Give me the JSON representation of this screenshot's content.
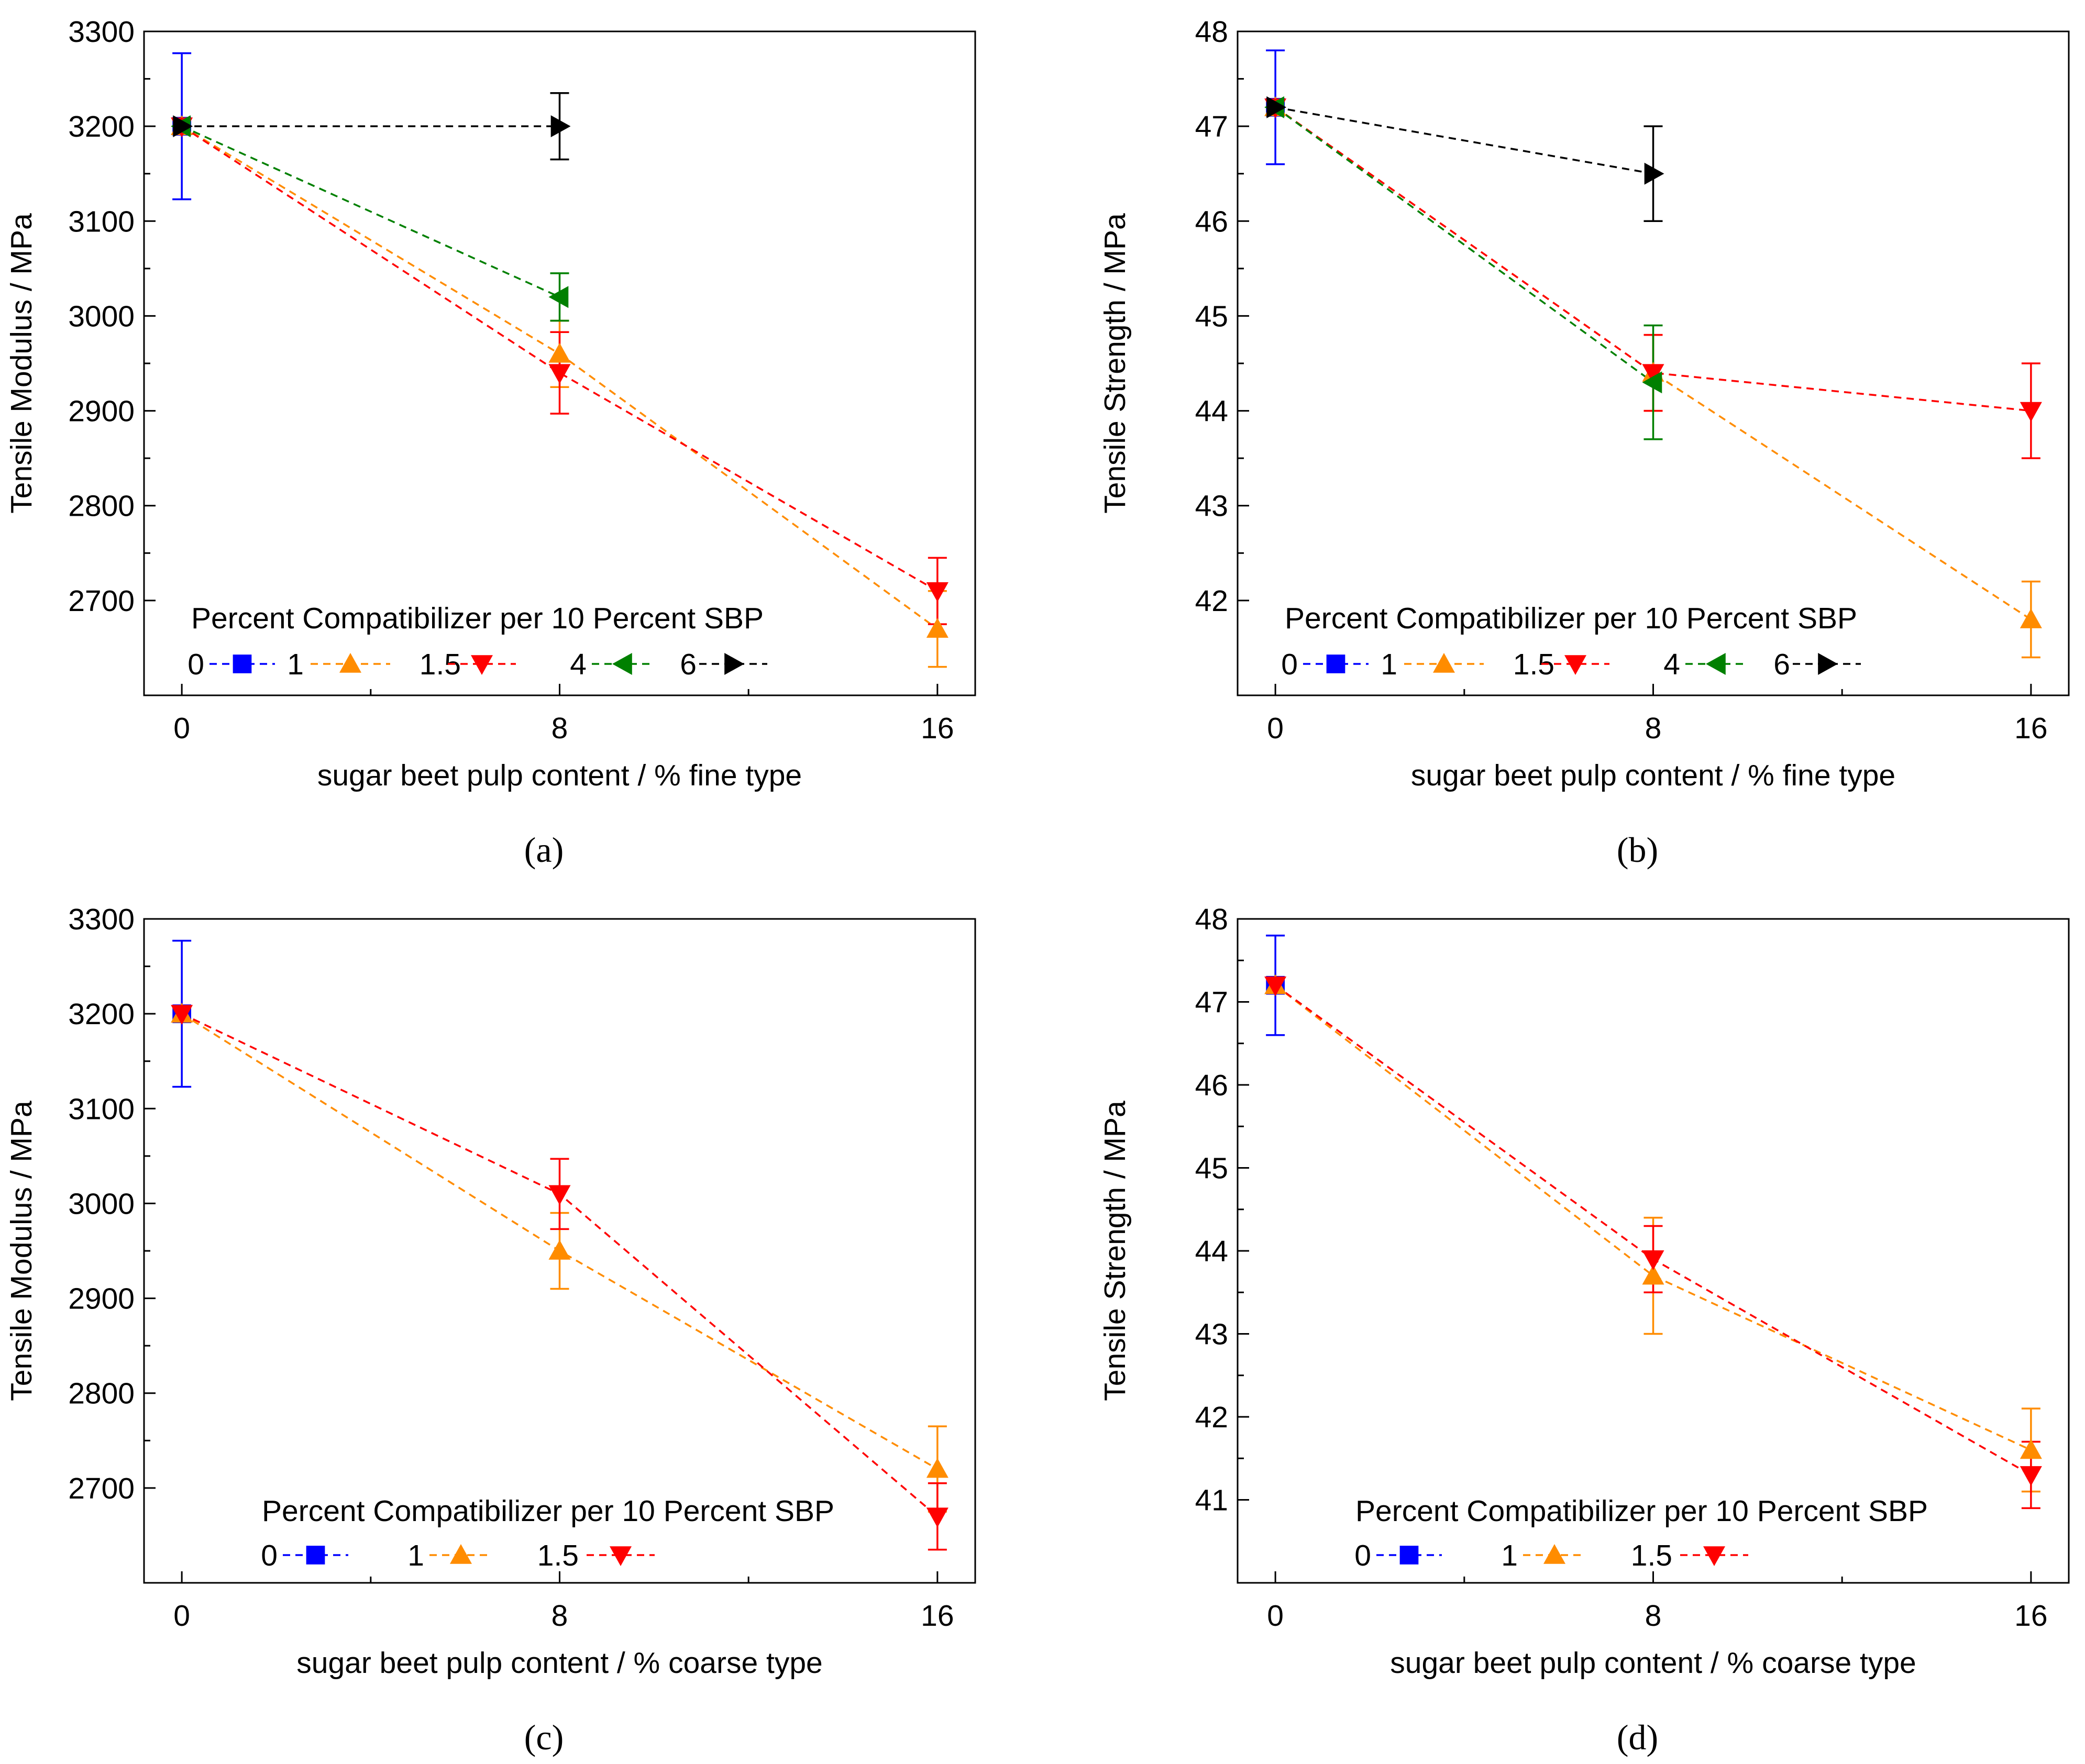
{
  "chart_data": [
    {
      "id": "a",
      "type": "line",
      "panel_label": "(a)",
      "ylabel": "Tensile Modulus / MPa",
      "xlabel": "sugar beet pulp content / % fine type",
      "xlim": [
        -0.8,
        16.8
      ],
      "ylim": [
        2600,
        3300
      ],
      "xticks": [
        0,
        8,
        16
      ],
      "yticks": [
        2700,
        2800,
        2900,
        3000,
        3100,
        3200,
        3300
      ],
      "legend": {
        "title": "Percent Compatibilizer per 10 Percent SBP",
        "placement": "bottom-left"
      },
      "series": [
        {
          "name": "0",
          "color": "#0000ff",
          "marker": "square",
          "points": [
            {
              "x": 0,
              "y": 3200,
              "err": 77
            }
          ]
        },
        {
          "name": "1",
          "color": "#ff8c00",
          "marker": "triangle-up",
          "points": [
            {
              "x": 0,
              "y": 3200,
              "err": 0
            },
            {
              "x": 8,
              "y": 2960,
              "err": 35
            },
            {
              "x": 16,
              "y": 2670,
              "err": 40
            }
          ]
        },
        {
          "name": "1.5",
          "color": "#ff0000",
          "marker": "triangle-down",
          "points": [
            {
              "x": 0,
              "y": 3200,
              "err": 0
            },
            {
              "x": 8,
              "y": 2940,
              "err": 43
            },
            {
              "x": 16,
              "y": 2710,
              "err": 35
            }
          ]
        },
        {
          "name": "4",
          "color": "#008000",
          "marker": "triangle-left",
          "points": [
            {
              "x": 0,
              "y": 3200,
              "err": 0
            },
            {
              "x": 8,
              "y": 3020,
              "err": 25
            }
          ]
        },
        {
          "name": "6",
          "color": "#000000",
          "marker": "triangle-right",
          "points": [
            {
              "x": 0,
              "y": 3200,
              "err": 0
            },
            {
              "x": 8,
              "y": 3200,
              "err": 35
            }
          ]
        }
      ]
    },
    {
      "id": "b",
      "type": "line",
      "panel_label": "(b)",
      "ylabel": "Tensile Strength / MPa",
      "xlabel": "sugar beet pulp content / % fine type",
      "xlim": [
        -0.8,
        16.8
      ],
      "ylim": [
        41,
        48
      ],
      "xticks": [
        0,
        8,
        16
      ],
      "yticks": [
        42,
        43,
        44,
        45,
        46,
        47,
        48
      ],
      "legend": {
        "title": "Percent Compatibilizer per 10 Percent SBP",
        "placement": "bottom-left"
      },
      "series": [
        {
          "name": "0",
          "color": "#0000ff",
          "marker": "square",
          "points": [
            {
              "x": 0,
              "y": 47.2,
              "err": 0.6
            }
          ]
        },
        {
          "name": "1",
          "color": "#ff8c00",
          "marker": "triangle-up",
          "points": [
            {
              "x": 0,
              "y": 47.2,
              "err": 0
            },
            {
              "x": 8,
              "y": 44.4,
              "err": 0.4
            },
            {
              "x": 16,
              "y": 41.8,
              "err": 0.4
            }
          ]
        },
        {
          "name": "1.5",
          "color": "#ff0000",
          "marker": "triangle-down",
          "points": [
            {
              "x": 0,
              "y": 47.2,
              "err": 0
            },
            {
              "x": 8,
              "y": 44.4,
              "err": 0.4
            },
            {
              "x": 16,
              "y": 44.0,
              "err": 0.5
            }
          ]
        },
        {
          "name": "4",
          "color": "#008000",
          "marker": "triangle-left",
          "points": [
            {
              "x": 0,
              "y": 47.2,
              "err": 0
            },
            {
              "x": 8,
              "y": 44.3,
              "err": 0.6
            }
          ]
        },
        {
          "name": "6",
          "color": "#000000",
          "marker": "triangle-right",
          "points": [
            {
              "x": 0,
              "y": 47.2,
              "err": 0
            },
            {
              "x": 8,
              "y": 46.5,
              "err": 0.5
            }
          ]
        }
      ]
    },
    {
      "id": "c",
      "type": "line",
      "panel_label": "(c)",
      "ylabel": "Tensile Modulus / MPa",
      "xlabel": "sugar beet pulp content / % coarse type",
      "xlim": [
        -0.8,
        16.8
      ],
      "ylim": [
        2600,
        3300
      ],
      "xticks": [
        0,
        8,
        16
      ],
      "yticks": [
        2700,
        2800,
        2900,
        3000,
        3100,
        3200,
        3300
      ],
      "legend": {
        "title": "Percent Compatibilizer per 10 Percent SBP",
        "placement": "bottom-center"
      },
      "series": [
        {
          "name": "0",
          "color": "#0000ff",
          "marker": "square",
          "points": [
            {
              "x": 0,
              "y": 3200,
              "err": 77
            }
          ]
        },
        {
          "name": "1",
          "color": "#ff8c00",
          "marker": "triangle-up",
          "points": [
            {
              "x": 0,
              "y": 3200,
              "err": 0
            },
            {
              "x": 8,
              "y": 2950,
              "err": 40
            },
            {
              "x": 16,
              "y": 2720,
              "err": 45
            }
          ]
        },
        {
          "name": "1.5",
          "color": "#ff0000",
          "marker": "triangle-down",
          "points": [
            {
              "x": 0,
              "y": 3200,
              "err": 0
            },
            {
              "x": 8,
              "y": 3010,
              "err": 37
            },
            {
              "x": 16,
              "y": 2670,
              "err": 35
            }
          ]
        }
      ]
    },
    {
      "id": "d",
      "type": "line",
      "panel_label": "(d)",
      "ylabel": "Tensile Strength / MPa",
      "xlabel": "sugar beet pulp content / % coarse type",
      "xlim": [
        -0.8,
        16.8
      ],
      "ylim": [
        40,
        48
      ],
      "xticks": [
        0,
        8,
        16
      ],
      "yticks": [
        41,
        42,
        43,
        44,
        45,
        46,
        47,
        48
      ],
      "legend": {
        "title": "Percent Compatibilizer per 10 Percent SBP",
        "placement": "bottom-center"
      },
      "series": [
        {
          "name": "0",
          "color": "#0000ff",
          "marker": "square",
          "points": [
            {
              "x": 0,
              "y": 47.2,
              "err": 0.6
            }
          ]
        },
        {
          "name": "1",
          "color": "#ff8c00",
          "marker": "triangle-up",
          "points": [
            {
              "x": 0,
              "y": 47.2,
              "err": 0
            },
            {
              "x": 8,
              "y": 43.7,
              "err": 0.7
            },
            {
              "x": 16,
              "y": 41.6,
              "err": 0.5
            }
          ]
        },
        {
          "name": "1.5",
          "color": "#ff0000",
          "marker": "triangle-down",
          "points": [
            {
              "x": 0,
              "y": 47.2,
              "err": 0
            },
            {
              "x": 8,
              "y": 43.9,
              "err": 0.4
            },
            {
              "x": 16,
              "y": 41.3,
              "err": 0.4
            }
          ]
        }
      ]
    }
  ]
}
